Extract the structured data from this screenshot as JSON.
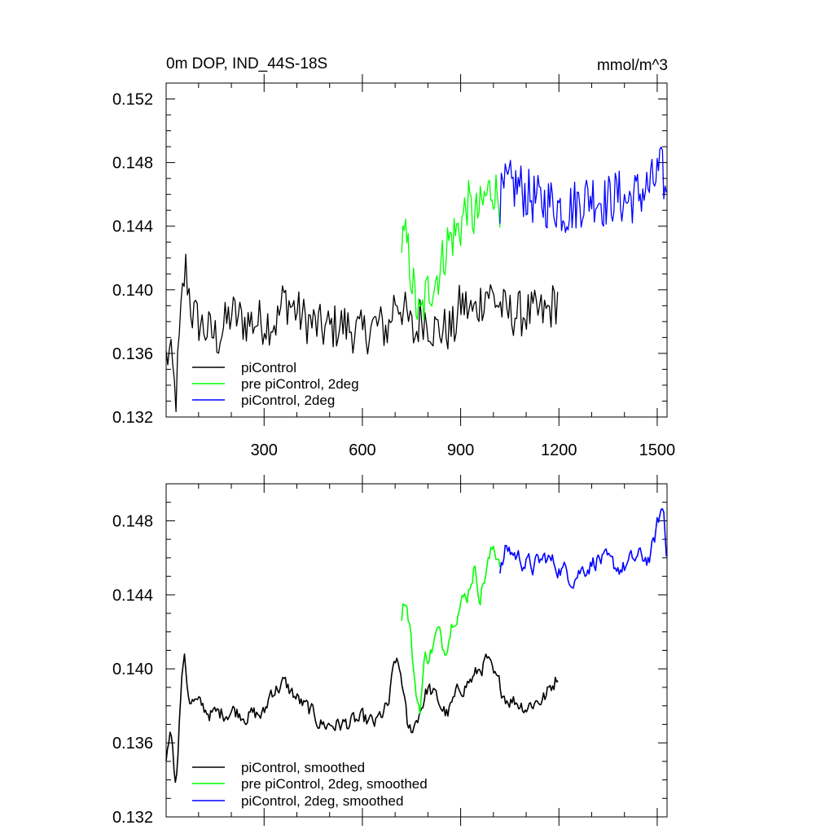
{
  "chart_data": [
    {
      "type": "line",
      "title_left": "0m DOP, IND_44S-18S",
      "title_right": "mmol/m^3",
      "xlim": [
        1,
        1530
      ],
      "ylim": [
        0.132,
        0.153
      ],
      "xticks": [
        300,
        600,
        900,
        1200,
        1500
      ],
      "xtick_labels": [
        "300",
        "600",
        "900",
        "1200",
        "1500"
      ],
      "yticks": [
        0.132,
        0.136,
        0.14,
        0.144,
        0.148,
        0.152
      ],
      "ytick_labels": [
        "0.132",
        "0.136",
        "0.140",
        "0.144",
        "0.148",
        "0.152"
      ],
      "legend": [
        "piControl",
        "pre piControl, 2deg",
        "piControl, 2deg"
      ],
      "series": [
        {
          "name": "piControl",
          "color": "#000000",
          "start": 1,
          "end": 1200,
          "step": 5,
          "smoothed": false,
          "noise": 0.0015,
          "anchors": [
            [
              1,
              0.1357
            ],
            [
              10,
              0.136
            ],
            [
              20,
              0.135
            ],
            [
              30,
              0.133
            ],
            [
              50,
              0.1395
            ],
            [
              60,
              0.1415
            ],
            [
              80,
              0.1385
            ],
            [
              120,
              0.1375
            ],
            [
              160,
              0.137
            ],
            [
              200,
              0.1385
            ],
            [
              240,
              0.138
            ],
            [
              300,
              0.138
            ],
            [
              340,
              0.138
            ],
            [
              360,
              0.1395
            ],
            [
              420,
              0.1382
            ],
            [
              480,
              0.1375
            ],
            [
              540,
              0.1378
            ],
            [
              600,
              0.1372
            ],
            [
              640,
              0.1378
            ],
            [
              680,
              0.1375
            ],
            [
              700,
              0.1395
            ],
            [
              720,
              0.139
            ],
            [
              740,
              0.138
            ],
            [
              760,
              0.137
            ],
            [
              780,
              0.1385
            ],
            [
              820,
              0.1375
            ],
            [
              880,
              0.1375
            ],
            [
              900,
              0.1392
            ],
            [
              940,
              0.1385
            ],
            [
              980,
              0.14
            ],
            [
              1000,
              0.1395
            ],
            [
              1040,
              0.1385
            ],
            [
              1100,
              0.1385
            ],
            [
              1160,
              0.1385
            ],
            [
              1200,
              0.1395
            ]
          ]
        },
        {
          "name": "pre piControl, 2deg",
          "color": "#00ff00",
          "start": 720,
          "end": 1020,
          "step": 4,
          "smoothed": false,
          "noise": 0.0016,
          "anchors": [
            [
              720,
              0.143
            ],
            [
              735,
              0.143
            ],
            [
              760,
              0.1395
            ],
            [
              775,
              0.138
            ],
            [
              800,
              0.14
            ],
            [
              820,
              0.1405
            ],
            [
              840,
              0.1415
            ],
            [
              860,
              0.143
            ],
            [
              880,
              0.1435
            ],
            [
              900,
              0.144
            ],
            [
              920,
              0.1455
            ],
            [
              940,
              0.1445
            ],
            [
              960,
              0.145
            ],
            [
              980,
              0.146
            ],
            [
              1000,
              0.1465
            ],
            [
              1020,
              0.1455
            ]
          ]
        },
        {
          "name": "piControl, 2deg",
          "color": "#0000ff",
          "start": 1020,
          "end": 1530,
          "step": 4,
          "smoothed": false,
          "noise": 0.0017,
          "anchors": [
            [
              1020,
              0.1455
            ],
            [
              1040,
              0.1465
            ],
            [
              1080,
              0.1465
            ],
            [
              1100,
              0.146
            ],
            [
              1140,
              0.1455
            ],
            [
              1180,
              0.1455
            ],
            [
              1220,
              0.145
            ],
            [
              1260,
              0.1455
            ],
            [
              1300,
              0.146
            ],
            [
              1340,
              0.1455
            ],
            [
              1380,
              0.146
            ],
            [
              1400,
              0.1455
            ],
            [
              1440,
              0.146
            ],
            [
              1480,
              0.1465
            ],
            [
              1510,
              0.1475
            ],
            [
              1520,
              0.147
            ],
            [
              1530,
              0.145
            ]
          ]
        }
      ]
    },
    {
      "type": "line",
      "xlim": [
        1,
        1530
      ],
      "ylim": [
        0.132,
        0.15
      ],
      "xticks": [
        300,
        600,
        900,
        1200,
        1500
      ],
      "yticks": [
        0.132,
        0.136,
        0.14,
        0.144,
        0.148
      ],
      "ytick_labels": [
        "0.132",
        "0.136",
        "0.140",
        "0.144",
        "0.148"
      ],
      "legend": [
        "piControl, smoothed",
        "pre piControl, 2deg, smoothed",
        "piControl, 2deg, smoothed"
      ],
      "series": [
        {
          "name": "piControl, smoothed",
          "color": "#000000",
          "start": 1,
          "end": 1200,
          "step": 4,
          "smoothed": true,
          "noise": 0.0009,
          "anchors": [
            [
              1,
              0.1352
            ],
            [
              10,
              0.1365
            ],
            [
              20,
              0.1365
            ],
            [
              30,
              0.1336
            ],
            [
              45,
              0.1385
            ],
            [
              55,
              0.1408
            ],
            [
              70,
              0.1385
            ],
            [
              100,
              0.138
            ],
            [
              150,
              0.1375
            ],
            [
              200,
              0.1378
            ],
            [
              260,
              0.1375
            ],
            [
              300,
              0.1375
            ],
            [
              320,
              0.1388
            ],
            [
              360,
              0.1392
            ],
            [
              420,
              0.138
            ],
            [
              480,
              0.137
            ],
            [
              540,
              0.137
            ],
            [
              600,
              0.1372
            ],
            [
              640,
              0.137
            ],
            [
              680,
              0.138
            ],
            [
              700,
              0.1405
            ],
            [
              720,
              0.1395
            ],
            [
              740,
              0.1365
            ],
            [
              760,
              0.137
            ],
            [
              800,
              0.139
            ],
            [
              860,
              0.1375
            ],
            [
              900,
              0.139
            ],
            [
              940,
              0.1395
            ],
            [
              980,
              0.1405
            ],
            [
              1000,
              0.1395
            ],
            [
              1040,
              0.1385
            ],
            [
              1100,
              0.138
            ],
            [
              1160,
              0.1385
            ],
            [
              1200,
              0.1398
            ]
          ]
        },
        {
          "name": "pre piControl, 2deg, smoothed",
          "color": "#00ff00",
          "start": 720,
          "end": 1020,
          "step": 4,
          "smoothed": true,
          "noise": 0.001,
          "anchors": [
            [
              720,
              0.143
            ],
            [
              730,
              0.144
            ],
            [
              745,
              0.1425
            ],
            [
              760,
              0.139
            ],
            [
              775,
              0.1378
            ],
            [
              790,
              0.1405
            ],
            [
              810,
              0.141
            ],
            [
              830,
              0.142
            ],
            [
              850,
              0.141
            ],
            [
              880,
              0.143
            ],
            [
              920,
              0.144
            ],
            [
              940,
              0.1455
            ],
            [
              960,
              0.144
            ],
            [
              980,
              0.1455
            ],
            [
              1000,
              0.1465
            ],
            [
              1020,
              0.146
            ]
          ]
        },
        {
          "name": "piControl, 2deg, smoothed",
          "color": "#0000ff",
          "start": 1020,
          "end": 1530,
          "step": 4,
          "smoothed": true,
          "noise": 0.001,
          "anchors": [
            [
              1020,
              0.145
            ],
            [
              1040,
              0.1465
            ],
            [
              1080,
              0.146
            ],
            [
              1120,
              0.1455
            ],
            [
              1160,
              0.146
            ],
            [
              1200,
              0.1455
            ],
            [
              1240,
              0.145
            ],
            [
              1280,
              0.1455
            ],
            [
              1320,
              0.146
            ],
            [
              1360,
              0.1455
            ],
            [
              1400,
              0.1455
            ],
            [
              1440,
              0.146
            ],
            [
              1480,
              0.146
            ],
            [
              1510,
              0.1485
            ],
            [
              1520,
              0.1485
            ],
            [
              1530,
              0.1455
            ]
          ]
        }
      ]
    }
  ]
}
